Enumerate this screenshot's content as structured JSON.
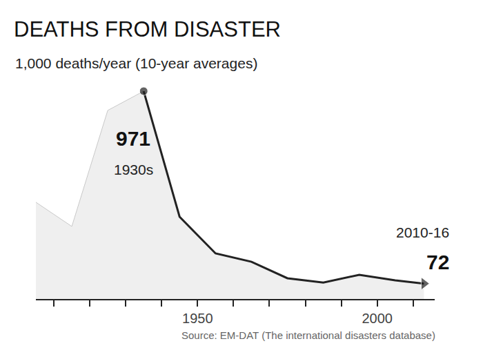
{
  "chart_data": {
    "type": "area",
    "title": "DEATHS FROM DISASTER",
    "subtitle": "1,000 deaths/year (10-year averages)",
    "source": "Source: EM-DAT (The international disasters database)",
    "x": [
      1905,
      1915,
      1925,
      1935,
      1945,
      1955,
      1965,
      1975,
      1985,
      1995,
      2005,
      2013
    ],
    "values": [
      452,
      339,
      881,
      971,
      384,
      213,
      174,
      97,
      77,
      113,
      87,
      72
    ],
    "color": "#222222",
    "marker": "circle",
    "xlim": [
      1905,
      2016
    ],
    "xticks": [
      1950,
      2000
    ],
    "ylim": [
      0,
      971
    ],
    "tick_labels": "x",
    "grid": false,
    "annotations": [
      {
        "x": 1935,
        "label": "1930s"
      },
      {
        "x": 2013,
        "label": "2010-16"
      }
    ]
  }
}
